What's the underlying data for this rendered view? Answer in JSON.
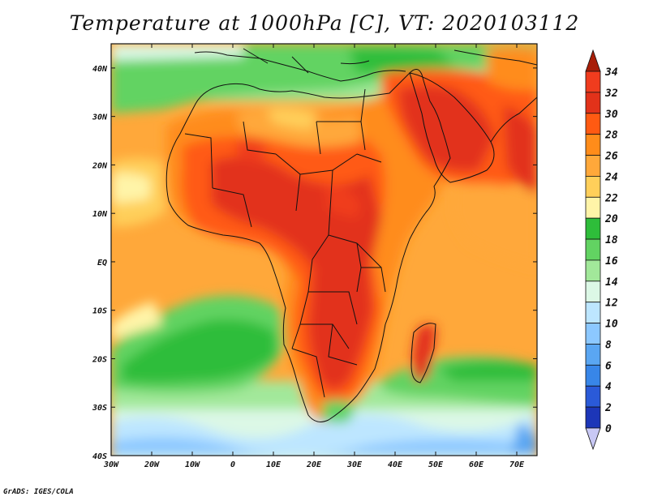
{
  "title": "Temperature at 1000hPa [C], VT: 2020103112",
  "footer": "GrADS: IGES/COLA",
  "map": {
    "type": "filled-contour-map",
    "region": "Africa",
    "lon_range": [
      -30,
      75
    ],
    "lat_range": [
      -40,
      45
    ],
    "lat_labels": [
      "40N",
      "30N",
      "20N",
      "10N",
      "EQ",
      "10S",
      "20S",
      "30S",
      "40S"
    ],
    "lon_labels": [
      "30W",
      "20W",
      "10W",
      "0",
      "10E",
      "20E",
      "30E",
      "40E",
      "50E",
      "60E",
      "70E"
    ]
  },
  "colorbar": {
    "levels": [
      "34",
      "32",
      "30",
      "28",
      "26",
      "24",
      "22",
      "20",
      "18",
      "16",
      "14",
      "12",
      "10",
      "8",
      "6",
      "4",
      "2",
      "0"
    ],
    "colors": [
      "#f03c1e",
      "#e2321a",
      "#ff5a12",
      "#ff8c1a",
      "#ffa83a",
      "#ffcf5a",
      "#fff4a8",
      "#2ebd3a",
      "#62d362",
      "#a2e89a",
      "#dcf8e6",
      "#bde6ff",
      "#8cc8ff",
      "#5aa6f2",
      "#3886e8",
      "#2a5ad8",
      "#1c36b8",
      "#101880"
    ],
    "top_color": "#a81e08",
    "bottom_color": "#c8c8f4"
  }
}
